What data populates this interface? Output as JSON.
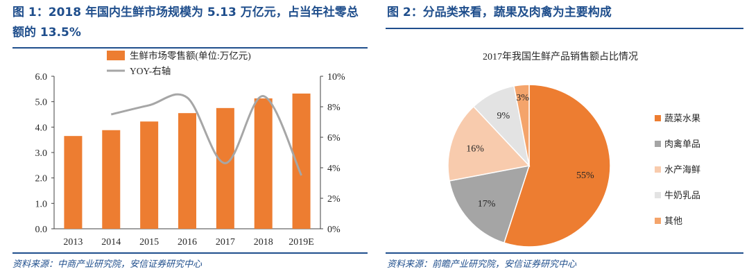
{
  "left": {
    "title": "图 1：2018 年国内生鲜市场规模为 5.13 万亿元，占当年社零总额的 13.5%",
    "source": "资料来源：中商产业研究院，安信证券研究中心"
  },
  "right": {
    "title": "图 2：分品类来看，蔬果及肉禽为主要构成",
    "source": "资料来源：前瞻产业研究院，安信证券研究中心"
  },
  "chart_data": [
    {
      "type": "bar",
      "categories": [
        "2013",
        "2014",
        "2015",
        "2016",
        "2017",
        "2018",
        "2019E"
      ],
      "series": [
        {
          "name": "生鲜市场零售额(单位:万亿元)",
          "type": "bar",
          "axis": "left",
          "values": [
            3.65,
            3.88,
            4.22,
            4.55,
            4.75,
            5.13,
            5.32
          ],
          "color": "#ed7d31"
        },
        {
          "name": "YOY-右轴",
          "type": "line",
          "axis": "right",
          "values": [
            null,
            7.5,
            8.1,
            8.6,
            4.3,
            8.7,
            3.5
          ],
          "color": "#a6a6a6"
        }
      ],
      "y_left": {
        "min": 0,
        "max": 6,
        "ticks": [
          "0.0",
          "1.0",
          "2.0",
          "3.0",
          "4.0",
          "5.0",
          "6.0"
        ]
      },
      "y_right": {
        "min": 0,
        "max": 10,
        "ticks": [
          "0%",
          "2%",
          "4%",
          "6%",
          "8%",
          "10%"
        ]
      },
      "legend_position": "top"
    },
    {
      "type": "pie",
      "title": "2017年我国生鲜产品销售额占比情况",
      "labels": [
        "蔬菜水果",
        "肉禽单品",
        "水产海鲜",
        "牛奶乳品",
        "其他"
      ],
      "values": [
        55,
        17,
        16,
        9,
        3
      ],
      "value_labels": [
        "55%",
        "17%",
        "16%",
        "9%",
        "3%"
      ],
      "colors": [
        "#ed7d31",
        "#a5a5a5",
        "#f8cbad",
        "#e3e3e3",
        "#f4a46b"
      ],
      "legend_position": "right"
    }
  ]
}
